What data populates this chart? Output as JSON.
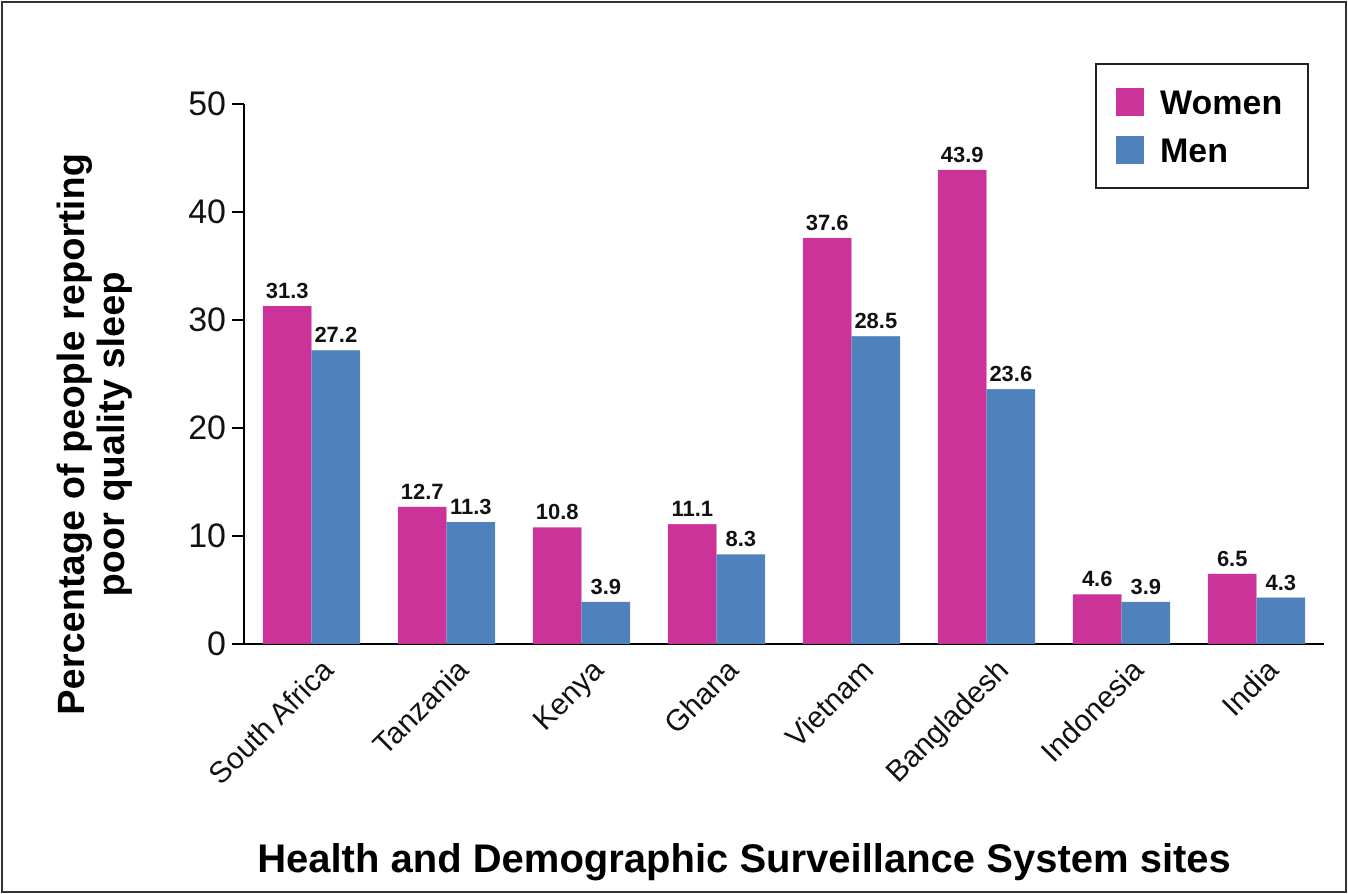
{
  "chart_data": {
    "type": "bar",
    "xlabel": "Health and Demographic Surveillance System sites",
    "ylabel": "Percentage of people reporting poor quality sleep",
    "categories": [
      "South Africa",
      "Tanzania",
      "Kenya",
      "Ghana",
      "Vietnam",
      "Bangladesh",
      "Indonesia",
      "India"
    ],
    "series": [
      {
        "name": "Women",
        "color": "#cc3399",
        "values": [
          31.3,
          12.7,
          10.8,
          11.1,
          37.6,
          43.9,
          4.6,
          6.5
        ]
      },
      {
        "name": "Men",
        "color": "#4f81bd",
        "values": [
          27.2,
          11.3,
          3.9,
          8.3,
          28.5,
          23.6,
          3.9,
          4.3
        ]
      }
    ],
    "ylim": [
      0,
      50
    ],
    "yticks": [
      0,
      10,
      20,
      30,
      40,
      50
    ],
    "data_labels": true,
    "legend": "top right",
    "grid": false
  }
}
